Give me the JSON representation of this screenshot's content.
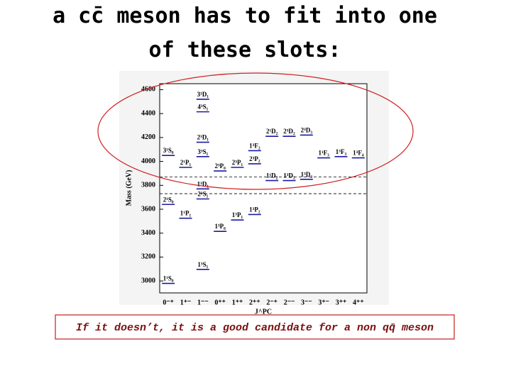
{
  "title_lines": [
    "a cc̄ meson has to fit into one",
    "of these slots:"
  ],
  "chart_data": {
    "type": "level",
    "y_label": "Mass (GeV)",
    "x_label": "J^PC",
    "categories": [
      "0⁻⁺",
      "1⁺⁻",
      "1⁻⁻",
      "0⁺⁺",
      "1⁺⁺",
      "2⁺⁺",
      "2⁻⁺",
      "2⁻⁻",
      "3⁻⁻",
      "3⁺⁻",
      "3⁺⁺",
      "4⁺⁺"
    ],
    "ylim": [
      2900,
      4650
    ],
    "yticks": [
      3000,
      3200,
      3400,
      3600,
      3800,
      4000,
      4200,
      4400,
      4600
    ],
    "thresholds": [
      3730,
      3870
    ],
    "color": "#1a1aa0",
    "levels": [
      {
        "label": "1¹S₀",
        "jpc": "0⁻⁺",
        "value": 2980
      },
      {
        "label": "2¹S₀",
        "jpc": "0⁻⁺",
        "value": 3640
      },
      {
        "label": "3¹S₀",
        "jpc": "0⁻⁺",
        "value": 4050
      },
      {
        "label": "1³S₁",
        "jpc": "1⁻⁻",
        "value": 3097
      },
      {
        "label": "2³S₁",
        "jpc": "1⁻⁻",
        "value": 3686
      },
      {
        "label": "3³S₁",
        "jpc": "1⁻⁻",
        "value": 4040
      },
      {
        "label": "4³S₁",
        "jpc": "1⁻⁻",
        "value": 4415
      },
      {
        "label": "1³D₁",
        "jpc": "1⁻⁻",
        "value": 3770
      },
      {
        "label": "2³D₁",
        "jpc": "1⁻⁻",
        "value": 4160
      },
      {
        "label": "3³D₁",
        "jpc": "1⁻⁻",
        "value": 4520
      },
      {
        "label": "1¹P₁",
        "jpc": "1⁺⁻",
        "value": 3525
      },
      {
        "label": "2¹P₁",
        "jpc": "1⁺⁻",
        "value": 3950
      },
      {
        "label": "1³P₀",
        "jpc": "0⁺⁺",
        "value": 3415
      },
      {
        "label": "2³P₀",
        "jpc": "0⁺⁺",
        "value": 3920
      },
      {
        "label": "1³P₁",
        "jpc": "1⁺⁺",
        "value": 3510
      },
      {
        "label": "2³P₁",
        "jpc": "1⁺⁺",
        "value": 3950
      },
      {
        "label": "1³P₂",
        "jpc": "2⁺⁺",
        "value": 3556
      },
      {
        "label": "2³P₂",
        "jpc": "2⁺⁺",
        "value": 3980
      },
      {
        "label": "1³F₂",
        "jpc": "2⁺⁺",
        "value": 4090
      },
      {
        "label": "1¹D₂",
        "jpc": "2⁻⁺",
        "value": 3840
      },
      {
        "label": "2¹D₂",
        "jpc": "2⁻⁺",
        "value": 4210
      },
      {
        "label": "1³D₂",
        "jpc": "2⁻⁻",
        "value": 3840
      },
      {
        "label": "2³D₂",
        "jpc": "2⁻⁻",
        "value": 4210
      },
      {
        "label": "1³D₃",
        "jpc": "3⁻⁻",
        "value": 3850
      },
      {
        "label": "2³D₃",
        "jpc": "3⁻⁻",
        "value": 4220
      },
      {
        "label": "1¹F₃",
        "jpc": "3⁺⁻",
        "value": 4030
      },
      {
        "label": "1³F₃",
        "jpc": "3⁺⁺",
        "value": 4040
      },
      {
        "label": "1³F₄",
        "jpc": "4⁺⁺",
        "value": 4030
      }
    ]
  },
  "footer": "If it doesn’t, it is a good candidate for a non qq̄ meson"
}
